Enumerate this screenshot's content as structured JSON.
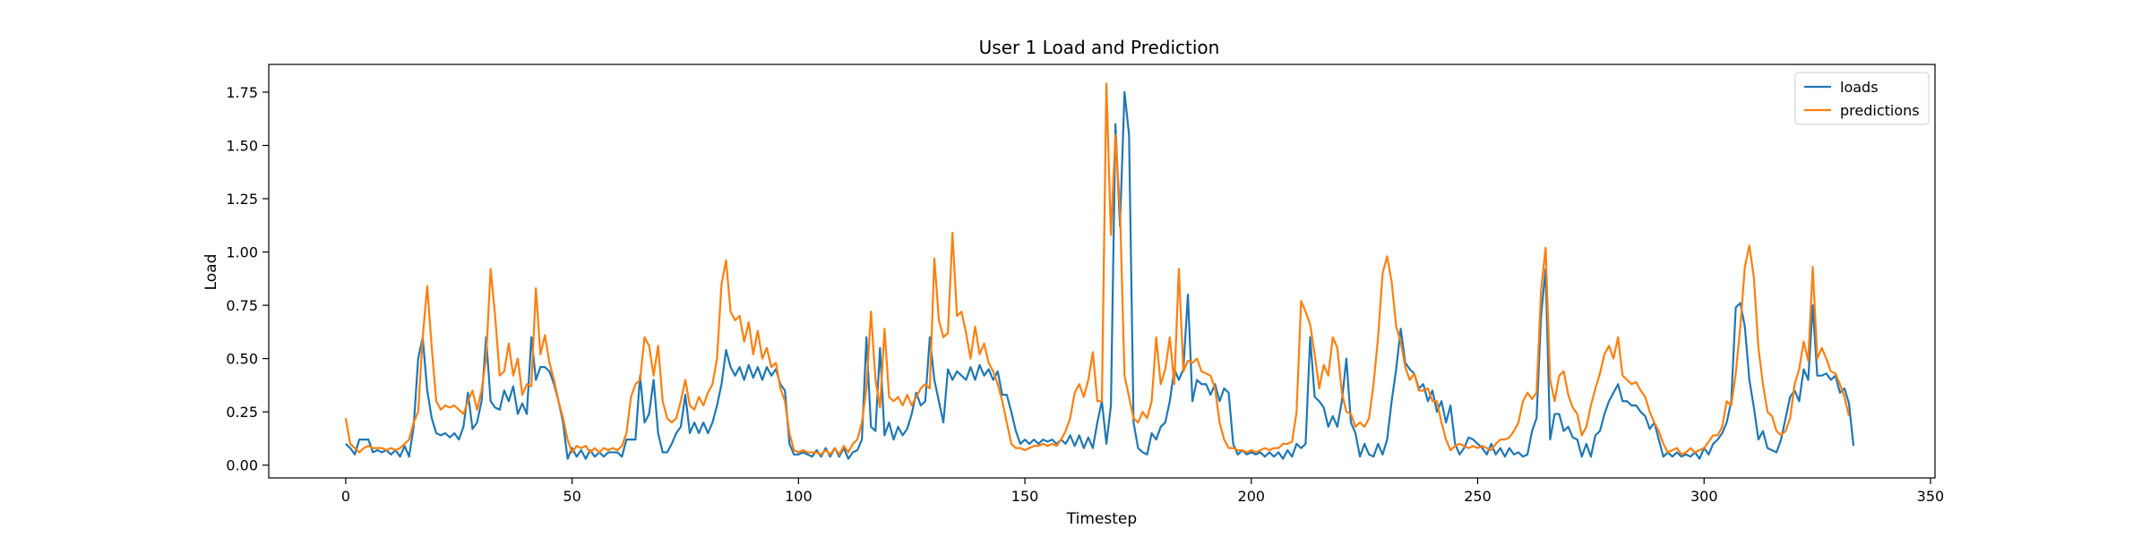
{
  "chart_data": {
    "type": "line",
    "title": "User 1 Load and Prediction",
    "xlabel": "Timestep",
    "ylabel": "Load",
    "xlim": [
      -17,
      351
    ],
    "ylim": [
      -0.06,
      1.88
    ],
    "xticks": [
      0,
      50,
      100,
      150,
      200,
      250,
      300,
      350
    ],
    "yticks": [
      0.0,
      0.25,
      0.5,
      0.75,
      1.0,
      1.25,
      1.5,
      1.75
    ],
    "ytick_labels": [
      "0.00",
      "0.25",
      "0.50",
      "0.75",
      "1.00",
      "1.25",
      "1.50",
      "1.75"
    ],
    "legend_position": "top-right",
    "grid": false,
    "series": [
      {
        "name": "loads",
        "color": "#1f77b4",
        "values": [
          0.1,
          0.08,
          0.05,
          0.12,
          0.12,
          0.12,
          0.06,
          0.07,
          0.06,
          0.07,
          0.05,
          0.07,
          0.04,
          0.09,
          0.04,
          0.18,
          0.5,
          0.6,
          0.35,
          0.22,
          0.15,
          0.14,
          0.15,
          0.13,
          0.15,
          0.12,
          0.18,
          0.34,
          0.17,
          0.2,
          0.3,
          0.6,
          0.3,
          0.27,
          0.26,
          0.35,
          0.3,
          0.37,
          0.24,
          0.29,
          0.24,
          0.6,
          0.4,
          0.46,
          0.46,
          0.44,
          0.38,
          0.3,
          0.2,
          0.03,
          0.08,
          0.04,
          0.07,
          0.03,
          0.07,
          0.04,
          0.06,
          0.04,
          0.06,
          0.06,
          0.06,
          0.04,
          0.12,
          0.12,
          0.12,
          0.42,
          0.2,
          0.24,
          0.4,
          0.15,
          0.06,
          0.06,
          0.1,
          0.15,
          0.18,
          0.33,
          0.15,
          0.2,
          0.15,
          0.2,
          0.15,
          0.2,
          0.28,
          0.38,
          0.54,
          0.46,
          0.42,
          0.46,
          0.4,
          0.47,
          0.41,
          0.46,
          0.4,
          0.46,
          0.42,
          0.45,
          0.38,
          0.35,
          0.1,
          0.05,
          0.05,
          0.06,
          0.05,
          0.04,
          0.07,
          0.04,
          0.08,
          0.04,
          0.08,
          0.04,
          0.08,
          0.03,
          0.06,
          0.07,
          0.12,
          0.6,
          0.18,
          0.16,
          0.55,
          0.14,
          0.2,
          0.12,
          0.18,
          0.14,
          0.17,
          0.24,
          0.34,
          0.28,
          0.3,
          0.6,
          0.4,
          0.3,
          0.2,
          0.45,
          0.4,
          0.44,
          0.42,
          0.4,
          0.46,
          0.4,
          0.47,
          0.42,
          0.45,
          0.4,
          0.44,
          0.33,
          0.33,
          0.25,
          0.16,
          0.1,
          0.12,
          0.1,
          0.12,
          0.1,
          0.12,
          0.11,
          0.12,
          0.1,
          0.12,
          0.1,
          0.14,
          0.09,
          0.14,
          0.08,
          0.13,
          0.08,
          0.2,
          0.3,
          0.1,
          0.28,
          1.6,
          1.12,
          1.75,
          1.55,
          0.2,
          0.08,
          0.06,
          0.05,
          0.15,
          0.12,
          0.18,
          0.2,
          0.3,
          0.45,
          0.4,
          0.45,
          0.8,
          0.3,
          0.4,
          0.38,
          0.38,
          0.33,
          0.38,
          0.3,
          0.36,
          0.34,
          0.1,
          0.05,
          0.07,
          0.05,
          0.06,
          0.05,
          0.06,
          0.04,
          0.06,
          0.04,
          0.06,
          0.03,
          0.07,
          0.04,
          0.1,
          0.08,
          0.1,
          0.6,
          0.32,
          0.3,
          0.27,
          0.18,
          0.23,
          0.18,
          0.3,
          0.5,
          0.2,
          0.15,
          0.04,
          0.1,
          0.05,
          0.04,
          0.1,
          0.05,
          0.12,
          0.3,
          0.45,
          0.64,
          0.48,
          0.45,
          0.43,
          0.36,
          0.38,
          0.3,
          0.35,
          0.25,
          0.3,
          0.2,
          0.28,
          0.1,
          0.05,
          0.08,
          0.13,
          0.12,
          0.1,
          0.08,
          0.05,
          0.1,
          0.05,
          0.08,
          0.04,
          0.08,
          0.05,
          0.06,
          0.04,
          0.05,
          0.16,
          0.22,
          0.7,
          0.92,
          0.12,
          0.24,
          0.24,
          0.16,
          0.18,
          0.13,
          0.12,
          0.04,
          0.1,
          0.04,
          0.14,
          0.16,
          0.24,
          0.3,
          0.34,
          0.38,
          0.3,
          0.3,
          0.28,
          0.28,
          0.25,
          0.23,
          0.17,
          0.2,
          0.12,
          0.04,
          0.06,
          0.04,
          0.06,
          0.04,
          0.05,
          0.04,
          0.06,
          0.03,
          0.08,
          0.05,
          0.1,
          0.12,
          0.15,
          0.2,
          0.3,
          0.74,
          0.76,
          0.65,
          0.4,
          0.27,
          0.12,
          0.16,
          0.08,
          0.07,
          0.06,
          0.12,
          0.22,
          0.32,
          0.35,
          0.3,
          0.45,
          0.4,
          0.75,
          0.42,
          0.42,
          0.43,
          0.4,
          0.42,
          0.34,
          0.36,
          0.29,
          0.09
        ]
      },
      {
        "name": "predictions",
        "color": "#ff7f0e",
        "values": [
          0.22,
          0.1,
          0.08,
          0.06,
          0.08,
          0.09,
          0.08,
          0.08,
          0.08,
          0.07,
          0.08,
          0.07,
          0.08,
          0.1,
          0.12,
          0.2,
          0.25,
          0.6,
          0.84,
          0.55,
          0.3,
          0.26,
          0.28,
          0.27,
          0.28,
          0.26,
          0.24,
          0.3,
          0.35,
          0.26,
          0.35,
          0.5,
          0.92,
          0.7,
          0.42,
          0.44,
          0.57,
          0.42,
          0.5,
          0.33,
          0.38,
          0.37,
          0.83,
          0.52,
          0.61,
          0.48,
          0.4,
          0.3,
          0.22,
          0.12,
          0.06,
          0.09,
          0.08,
          0.09,
          0.06,
          0.08,
          0.06,
          0.08,
          0.07,
          0.08,
          0.07,
          0.09,
          0.15,
          0.32,
          0.38,
          0.4,
          0.6,
          0.56,
          0.42,
          0.56,
          0.3,
          0.22,
          0.2,
          0.22,
          0.3,
          0.4,
          0.28,
          0.26,
          0.32,
          0.28,
          0.34,
          0.38,
          0.5,
          0.85,
          0.96,
          0.72,
          0.68,
          0.7,
          0.58,
          0.67,
          0.52,
          0.63,
          0.5,
          0.55,
          0.46,
          0.48,
          0.36,
          0.3,
          0.15,
          0.07,
          0.06,
          0.07,
          0.06,
          0.06,
          0.06,
          0.05,
          0.07,
          0.05,
          0.08,
          0.05,
          0.09,
          0.06,
          0.1,
          0.12,
          0.2,
          0.36,
          0.72,
          0.4,
          0.27,
          0.64,
          0.32,
          0.3,
          0.32,
          0.28,
          0.33,
          0.28,
          0.32,
          0.36,
          0.38,
          0.36,
          0.97,
          0.68,
          0.6,
          0.62,
          1.09,
          0.7,
          0.72,
          0.62,
          0.5,
          0.65,
          0.52,
          0.57,
          0.48,
          0.44,
          0.38,
          0.3,
          0.2,
          0.1,
          0.08,
          0.08,
          0.07,
          0.08,
          0.09,
          0.09,
          0.1,
          0.09,
          0.1,
          0.09,
          0.12,
          0.16,
          0.22,
          0.34,
          0.38,
          0.32,
          0.4,
          0.53,
          0.3,
          0.3,
          1.79,
          1.08,
          1.55,
          1.2,
          0.42,
          0.32,
          0.22,
          0.2,
          0.25,
          0.22,
          0.3,
          0.6,
          0.38,
          0.45,
          0.6,
          0.38,
          0.92,
          0.44,
          0.49,
          0.48,
          0.5,
          0.44,
          0.43,
          0.42,
          0.36,
          0.2,
          0.12,
          0.08,
          0.08,
          0.07,
          0.07,
          0.06,
          0.07,
          0.06,
          0.07,
          0.08,
          0.07,
          0.08,
          0.08,
          0.1,
          0.1,
          0.11,
          0.25,
          0.77,
          0.72,
          0.66,
          0.52,
          0.36,
          0.47,
          0.42,
          0.6,
          0.55,
          0.34,
          0.25,
          0.24,
          0.18,
          0.2,
          0.18,
          0.22,
          0.38,
          0.6,
          0.9,
          0.98,
          0.86,
          0.65,
          0.58,
          0.46,
          0.4,
          0.43,
          0.35,
          0.35,
          0.36,
          0.3,
          0.3,
          0.2,
          0.12,
          0.07,
          0.09,
          0.1,
          0.09,
          0.08,
          0.09,
          0.08,
          0.09,
          0.08,
          0.07,
          0.1,
          0.12,
          0.12,
          0.13,
          0.16,
          0.2,
          0.3,
          0.34,
          0.31,
          0.34,
          0.82,
          1.02,
          0.4,
          0.3,
          0.42,
          0.44,
          0.33,
          0.27,
          0.24,
          0.14,
          0.18,
          0.28,
          0.36,
          0.43,
          0.52,
          0.56,
          0.5,
          0.6,
          0.42,
          0.4,
          0.38,
          0.39,
          0.35,
          0.32,
          0.25,
          0.2,
          0.16,
          0.1,
          0.06,
          0.07,
          0.08,
          0.05,
          0.06,
          0.08,
          0.06,
          0.07,
          0.08,
          0.11,
          0.14,
          0.14,
          0.18,
          0.3,
          0.28,
          0.43,
          0.65,
          0.93,
          1.03,
          0.88,
          0.55,
          0.38,
          0.25,
          0.23,
          0.16,
          0.14,
          0.16,
          0.22,
          0.38,
          0.45,
          0.58,
          0.49,
          0.93,
          0.5,
          0.55,
          0.5,
          0.44,
          0.43,
          0.38,
          0.32,
          0.23
        ]
      }
    ]
  }
}
